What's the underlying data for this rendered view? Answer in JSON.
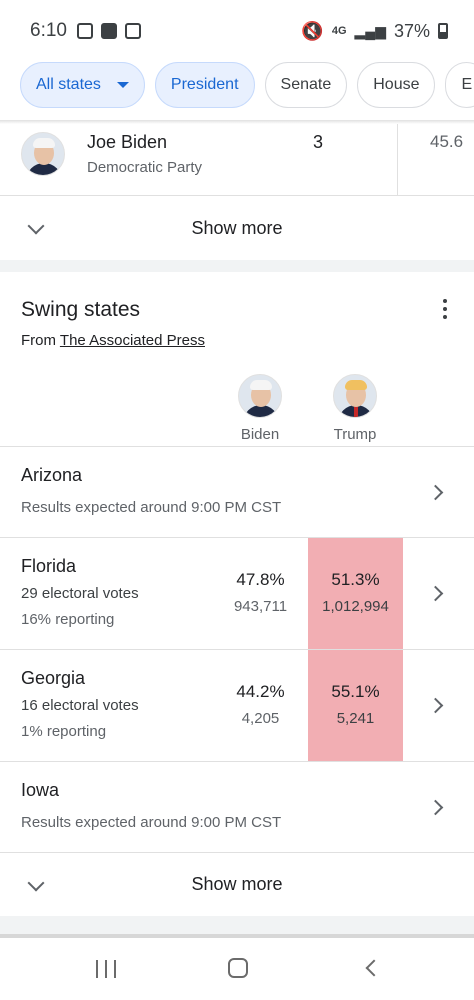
{
  "status_bar": {
    "time": "6:10",
    "network": "4G",
    "battery": "37%"
  },
  "chips": [
    {
      "label": "All states"
    },
    {
      "label": "President"
    },
    {
      "label": "Senate"
    },
    {
      "label": "House"
    },
    {
      "label": "E"
    }
  ],
  "candidate_row": {
    "name": "Joe Biden",
    "party": "Democratic Party",
    "electoral_votes": "3",
    "percent": "45.6"
  },
  "show_more_label": "Show more",
  "swing_states": {
    "title": "Swing states",
    "source_prefix": "From",
    "source_link": "The Associated Press",
    "candidates": [
      "Biden",
      "Trump"
    ],
    "rows": [
      {
        "state": "Arizona",
        "sub": "Results expected around 9:00 PM CST"
      },
      {
        "state": "Florida",
        "electoral": "29 electoral votes",
        "reporting": "16% reporting",
        "biden_pct": "47.8%",
        "biden_votes": "943,711",
        "trump_pct": "51.3%",
        "trump_votes": "1,012,994"
      },
      {
        "state": "Georgia",
        "electoral": "16 electoral votes",
        "reporting": "1% reporting",
        "biden_pct": "44.2%",
        "biden_votes": "4,205",
        "trump_pct": "55.1%",
        "trump_votes": "5,241"
      },
      {
        "state": "Iowa",
        "sub": "Results expected around 9:00 PM CST"
      }
    ],
    "show_more_label": "Show more"
  },
  "colors": {
    "leading_cell": "#f2aeb3",
    "active_chip_bg": "#e8f0fe",
    "active_chip_text": "#1967d2"
  }
}
